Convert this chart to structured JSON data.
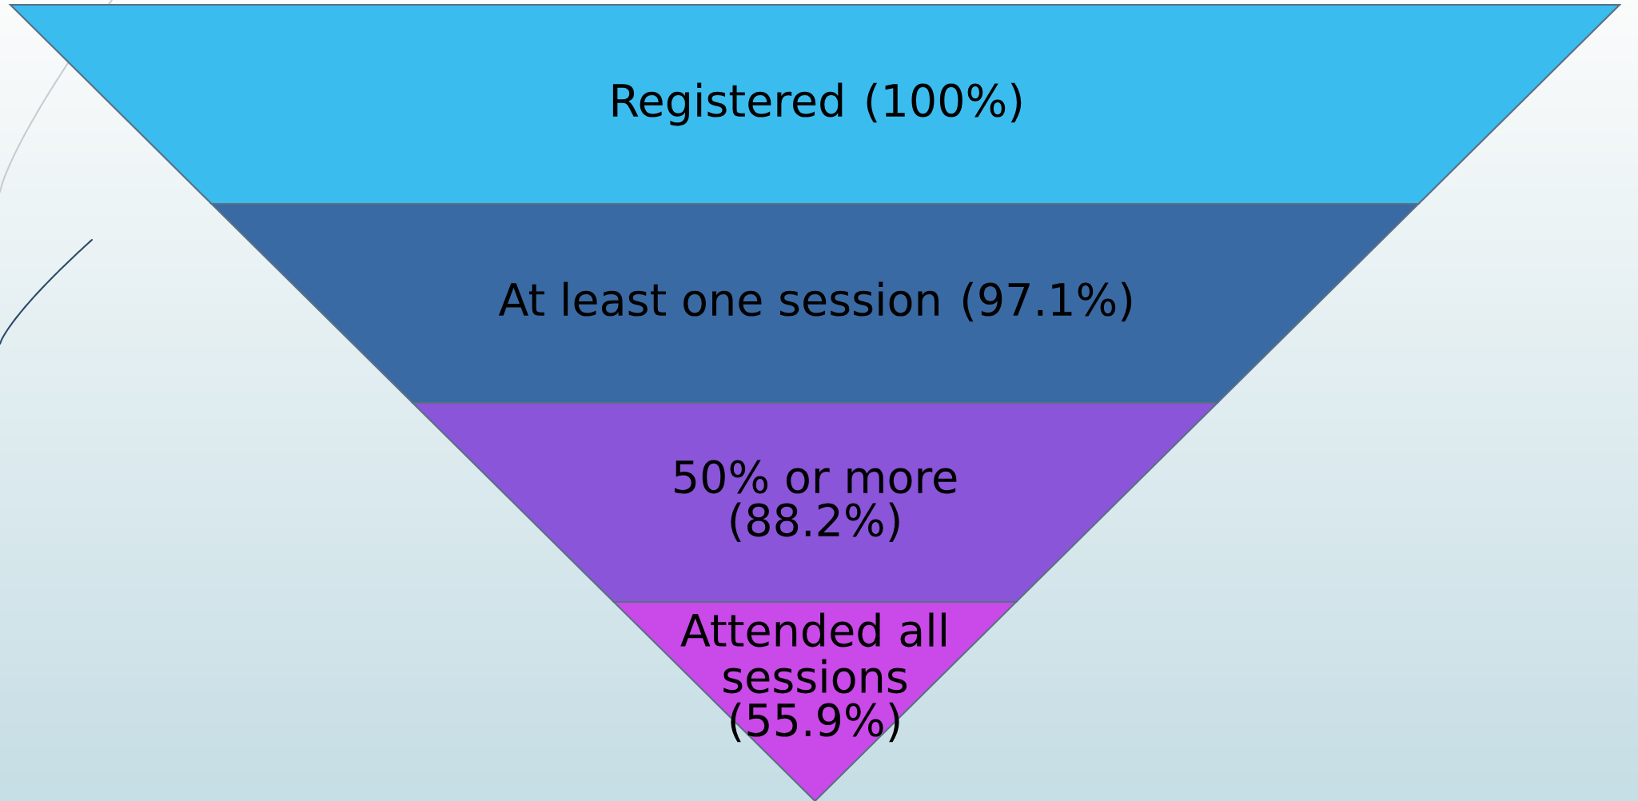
{
  "chart_data": {
    "type": "other",
    "categories": [
      "Registered",
      "At least one session",
      "50% or more",
      "Attended all\nsessions"
    ],
    "values": [
      100,
      97.1,
      88.2,
      55.9
    ],
    "value_labels": [
      "(100%)",
      "(97.1%)",
      "(88.2%)",
      "(55.9%)"
    ],
    "colors": [
      "#3bbcee",
      "#3a6aa3",
      "#8a55d8",
      "#c94ae8"
    ]
  }
}
